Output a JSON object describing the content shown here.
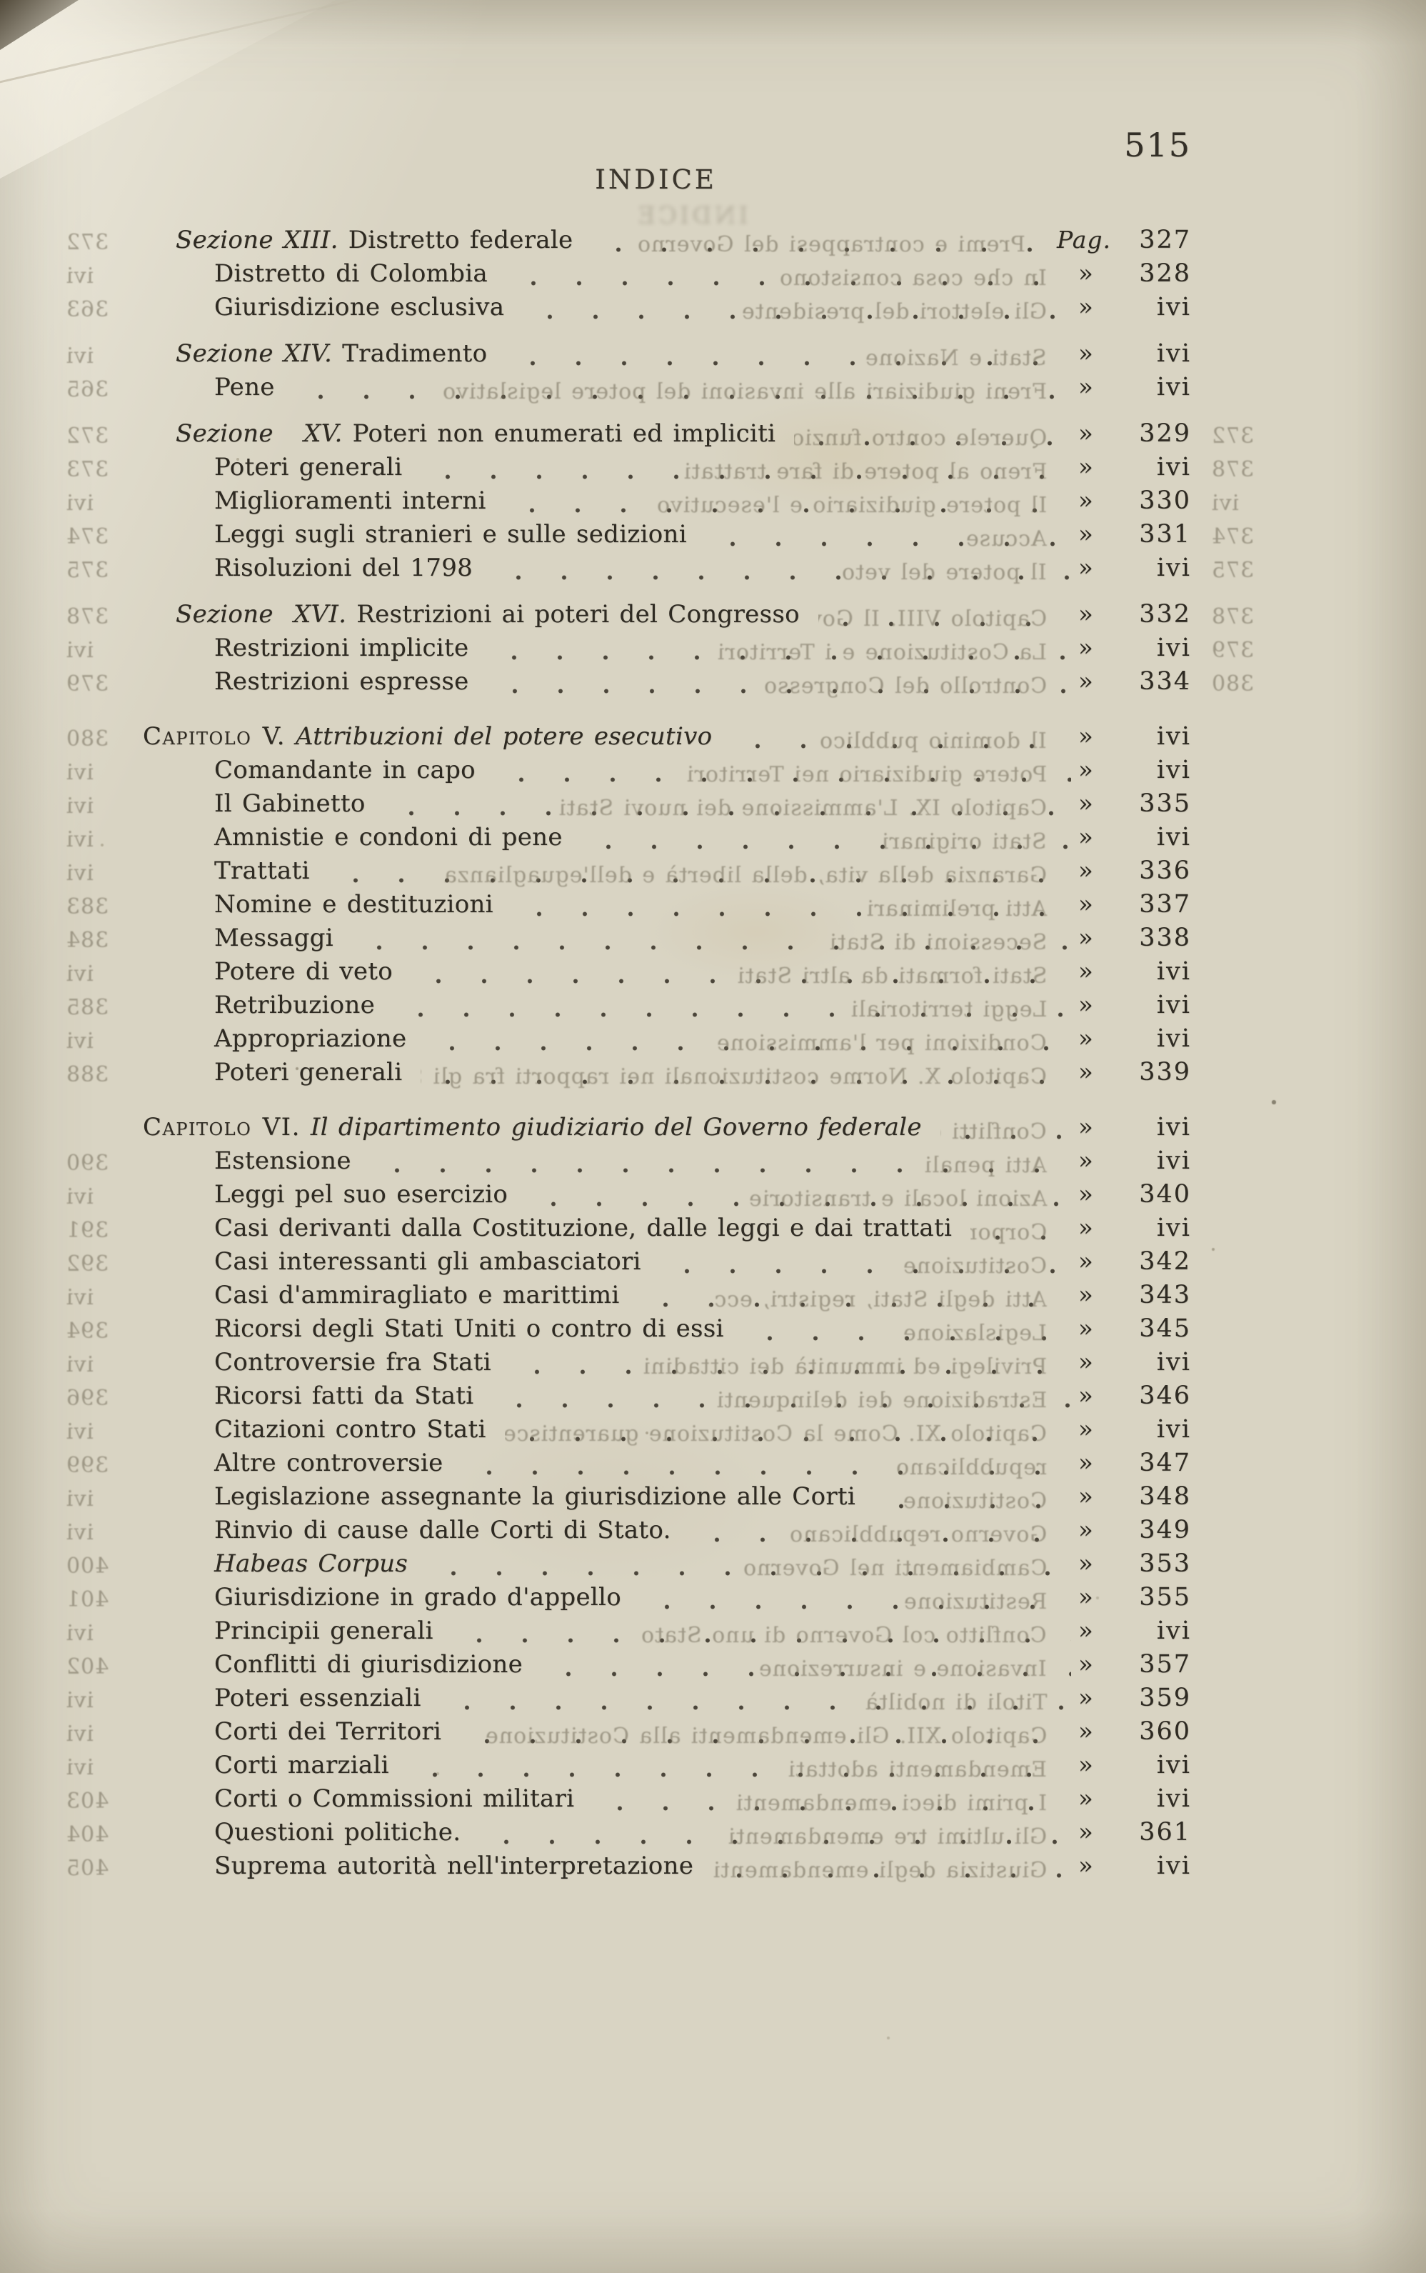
{
  "header": {
    "title": "INDICE",
    "folio": "515"
  },
  "toc": {
    "rows": [
      {
        "type": "section",
        "prefix": "Sezione XIII.",
        "title": "Distretto federale",
        "sep": "Pag.",
        "page": "327",
        "ghost_left": "372",
        "ghost_mid": "Premi e contrappesi del Governo"
      },
      {
        "type": "entry",
        "title": "Distretto di Colombia",
        "sep": "»",
        "page": "328",
        "ghost_left": "ivi",
        "ghost_mid": "In che cosa consistono"
      },
      {
        "type": "entry",
        "title": "Giurisdizione esclusiva",
        "sep": "»",
        "page": "ivi",
        "ghost_left": "363",
        "ghost_mid": "Gli elettori del presidente"
      },
      {
        "type": "section",
        "prefix": "Sezione XIV.",
        "title": "Tradimento",
        "sep": "»",
        "page": "ivi",
        "ghost_left": "ivi",
        "ghost_mid": "Stati e Nazione"
      },
      {
        "type": "entry",
        "title": "Pene",
        "sep": "»",
        "page": "ivi",
        "ghost_left": "365",
        "ghost_mid": "Freni giudiziari alle invasioni del potere legislativo"
      },
      {
        "type": "section",
        "prefix": "Sezione   XV.",
        "title": "Poteri non enumerati ed impliciti",
        "sep": "»",
        "page": "329",
        "ghost_left": "372",
        "ghost_mid": "Querele contro funzionari pubblici",
        "ghost_right": "372"
      },
      {
        "type": "entry",
        "title": "Poteri generali",
        "sep": "»",
        "page": "ivi",
        "ghost_left": "373",
        "ghost_mid": "Freno al potere di fare trattati",
        "ghost_right": "378"
      },
      {
        "type": "entry",
        "title": "Miglioramenti interni",
        "sep": "»",
        "page": "330",
        "ghost_left": "ivi",
        "ghost_mid": "Il potere giudiziario e l'esecutivo",
        "ghost_right": "ivi"
      },
      {
        "type": "entry",
        "title": "Leggi sugli stranieri e sulle sedizioni",
        "sep": "»",
        "page": "331",
        "ghost_left": "374",
        "ghost_mid": "Accuse",
        "ghost_right": "374"
      },
      {
        "type": "entry",
        "title": "Risoluzioni del 1798",
        "sep": "»",
        "page": "ivi",
        "ghost_left": "375",
        "ghost_mid": "Il potere del veto",
        "ghost_right": "375"
      },
      {
        "type": "section",
        "prefix": "Sezione  XVI.",
        "title": "Restrizioni ai poteri del Congresso",
        "sep": "»",
        "page": "332",
        "ghost_left": "378",
        "ghost_mid": "Capitolo VIII. Il Governo dei Territori",
        "ghost_right": "378"
      },
      {
        "type": "entry",
        "title": "Restrizioni implicite",
        "sep": "»",
        "page": "ivi",
        "ghost_left": "ivi",
        "ghost_mid": "La Costituzione e i Territori",
        "ghost_right": "379"
      },
      {
        "type": "entry",
        "title": "Restrizioni espresse",
        "sep": "»",
        "page": "334",
        "ghost_left": "379",
        "ghost_mid": "Controllo del Congresso",
        "ghost_right": "380"
      },
      {
        "type": "chapter",
        "prefix": "Capitolo V.",
        "title": "Attribuzioni del potere esecutivo",
        "sep": "»",
        "page": "ivi",
        "ghost_left": "380",
        "ghost_mid": "Il dominio pubblico"
      },
      {
        "type": "entry",
        "title": "Comandante in capo",
        "sep": "»",
        "page": "ivi",
        "ghost_left": "ivi",
        "ghost_mid": "Potere giudiziario nei Territori"
      },
      {
        "type": "entry",
        "title": "Il Gabinetto",
        "sep": "»",
        "page": "335",
        "ghost_left": "ivi",
        "ghost_mid": "Capitolo IX. L'ammissione dei nuovi Stati"
      },
      {
        "type": "entry",
        "title": "Amnistie e condoni di pene",
        "sep": "»",
        "page": "ivi",
        "ghost_left": "ivi",
        "ghost_mid": "Stati originari"
      },
      {
        "type": "entry",
        "title": "Trattati",
        "sep": "»",
        "page": "336",
        "ghost_left": "ivi",
        "ghost_mid": "Garanzia della vita, della libertà e dell'eguaglianza"
      },
      {
        "type": "entry",
        "title": "Nomine e destituzioni",
        "sep": "»",
        "page": "337",
        "ghost_left": "383",
        "ghost_mid": "Atti preliminari"
      },
      {
        "type": "entry",
        "title": "Messaggi",
        "sep": "»",
        "page": "338",
        "ghost_left": "384",
        "ghost_mid": "Secessioni di Stati"
      },
      {
        "type": "entry",
        "title": "Potere di veto",
        "sep": "»",
        "page": "ivi",
        "ghost_left": "ivi",
        "ghost_mid": "Stati formati da altri Stati"
      },
      {
        "type": "entry",
        "title": "Retribuzione",
        "sep": "»",
        "page": "ivi",
        "ghost_left": "385",
        "ghost_mid": "Leggi territoriali"
      },
      {
        "type": "entry",
        "title": "Appropriazione",
        "sep": "»",
        "page": "ivi",
        "ghost_left": "ivi",
        "ghost_mid": "Condizioni per l'ammissione"
      },
      {
        "type": "entry",
        "title": "Poteri generali",
        "sep": "»",
        "page": "339",
        "ghost_left": "388",
        "ghost_mid": "Capitolo X. Norme costituzionali nei rapporti fra gli Stati"
      },
      {
        "type": "chapter",
        "prefix": "Capitolo VI.",
        "title": "Il dipartimento giudiziario del Governo federale",
        "sep": "»",
        "page": "ivi",
        "ghost_mid": "Conflitti di leggi"
      },
      {
        "type": "entry",
        "title": "Estensione",
        "sep": "»",
        "page": "ivi",
        "ghost_left": "390",
        "ghost_mid": "Atti penali"
      },
      {
        "type": "entry",
        "title": "Leggi pel suo esercizio",
        "sep": "»",
        "page": "340",
        "ghost_left": "ivi",
        "ghost_mid": "Azioni locali e transitorie"
      },
      {
        "type": "entry",
        "title": "Casi derivanti dalla Costituzione, dalle leggi e dai trattati",
        "sep": "»",
        "page": "ivi",
        "ghost_left": "391",
        "ghost_mid": "Corporazioni"
      },
      {
        "type": "entry",
        "title": "Casi interessanti gli ambasciatori",
        "sep": "»",
        "page": "342",
        "ghost_left": "392",
        "ghost_mid": "Costituzione"
      },
      {
        "type": "entry",
        "title": "Casi d'ammiragliato e marittimi",
        "sep": "»",
        "page": "343",
        "ghost_left": "ivi",
        "ghost_mid": "Atti degli Stati, registri, ecc."
      },
      {
        "type": "entry",
        "title": "Ricorsi degli Stati Uniti o contro di essi",
        "sep": "»",
        "page": "345",
        "ghost_left": "394",
        "ghost_mid": "Legislazione"
      },
      {
        "type": "entry",
        "title": "Controversie fra Stati",
        "sep": "»",
        "page": "ivi",
        "ghost_left": "ivi",
        "ghost_mid": "Privilegi ed immunità dei cittadini"
      },
      {
        "type": "entry",
        "title": "Ricorsi fatti da Stati",
        "sep": "»",
        "page": "346",
        "ghost_left": "396",
        "ghost_mid": "Estradizione dei delinquenti"
      },
      {
        "type": "entry",
        "title": "Citazioni contro Stati",
        "sep": "»",
        "page": "ivi",
        "ghost_left": "ivi",
        "ghost_mid": "Capitolo XI. Come la Costituzione guarentisce il governo"
      },
      {
        "type": "entry",
        "title": "Altre controversie",
        "sep": "»",
        "page": "347",
        "ghost_left": "399",
        "ghost_mid": "repubblicano"
      },
      {
        "type": "entry",
        "title": "Legislazione assegnante la giurisdizione alle Corti",
        "sep": "»",
        "page": "348",
        "ghost_left": "ivi",
        "ghost_mid": "Costituzione"
      },
      {
        "type": "entry",
        "title": "Rinvio di cause dalle Corti di Stato.",
        "sep": "»",
        "page": "349",
        "ghost_left": "ivi",
        "ghost_mid": "Governo repubblicano"
      },
      {
        "type": "entry",
        "title": "Habeas Corpus",
        "italic": true,
        "sep": "»",
        "page": "353",
        "ghost_left": "400",
        "ghost_mid": "Cambiamenti nel Governo"
      },
      {
        "type": "entry",
        "title": "Giurisdizione in grado d'appello",
        "sep": "»",
        "page": "355",
        "ghost_left": "401",
        "ghost_mid": "Restituzione"
      },
      {
        "type": "entry",
        "title": "Principii generali",
        "sep": "»",
        "page": "ivi",
        "ghost_left": "ivi",
        "ghost_mid": "Conflitto col Governo di uno Stato"
      },
      {
        "type": "entry",
        "title": "Conflitti di giurisdizione",
        "sep": "»",
        "page": "357",
        "ghost_left": "402",
        "ghost_mid": "Invasione e insurrezione"
      },
      {
        "type": "entry",
        "title": "Poteri essenziali",
        "sep": "»",
        "page": "359",
        "ghost_left": "ivi",
        "ghost_mid": "Titoli di nobiltà"
      },
      {
        "type": "entry",
        "title": "Corti dei Territori",
        "sep": "»",
        "page": "360",
        "ghost_left": "ivi",
        "ghost_mid": "Capitolo XII. Gli emendamenti alla Costituzione"
      },
      {
        "type": "entry",
        "title": "Corti marziali",
        "sep": "»",
        "page": "ivi",
        "ghost_left": "ivi",
        "ghost_mid": "Emendamenti adottati"
      },
      {
        "type": "entry",
        "title": "Corti o Commissioni militari",
        "sep": "»",
        "page": "ivi",
        "ghost_left": "403",
        "ghost_mid": "I primi dieci emendamenti"
      },
      {
        "type": "entry",
        "title": "Questioni politiche.",
        "sep": "»",
        "page": "361",
        "ghost_left": "404",
        "ghost_mid": "Gli ultimi tre emendamenti"
      },
      {
        "type": "entry",
        "title": "Suprema autorità nell'interpretazione",
        "sep": "»",
        "page": "ivi",
        "ghost_left": "405",
        "ghost_mid": "Giustizia degli emendamenti"
      }
    ]
  }
}
